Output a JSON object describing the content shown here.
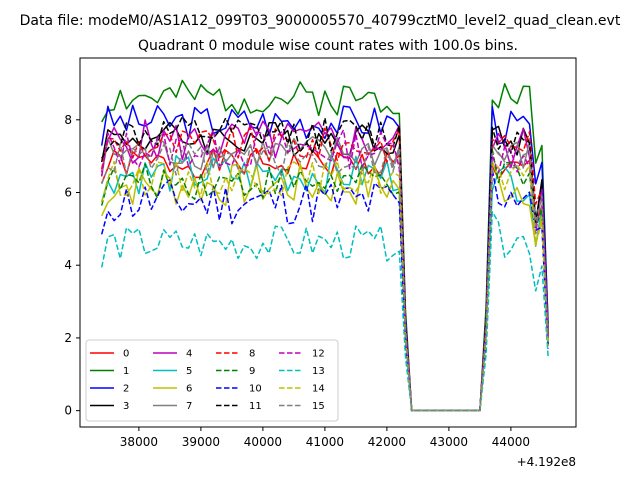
{
  "chart_data": {
    "type": "line",
    "suptitle": "Data file: modeM0/AS1A12_099T03_9000005570_40799cztM0_level2_quad_clean.evt",
    "title": "Quadrant 0 module wise count rates with 100.0s bins.",
    "xlabel": "",
    "ylabel": "",
    "x_offset_label": "+4.192e8",
    "xlim": [
      37050,
      45050
    ],
    "ylim": [
      -0.45,
      9.7
    ],
    "x_ticks": [
      38000,
      39000,
      40000,
      41000,
      42000,
      43000,
      44000
    ],
    "x_tick_labels": [
      "38000",
      "39000",
      "40000",
      "41000",
      "42000",
      "43000",
      "44000"
    ],
    "y_ticks": [
      0,
      2,
      4,
      6,
      8
    ],
    "y_tick_labels": [
      "0",
      "2",
      "4",
      "6",
      "8"
    ],
    "grid": false,
    "legend_position": "lower-left",
    "legend_columns": 4,
    "time_grid": {
      "first_block": [
        37400,
        42200
      ],
      "gap_ramp": [
        42300,
        42400
      ],
      "zero_span": [
        42400,
        43500
      ],
      "second_block": [
        43600,
        44600
      ],
      "step": 100
    },
    "series": [
      {
        "name": "0",
        "color": "#ff0000",
        "dash": "solid",
        "level": 6.8,
        "amp": 0.18,
        "seed": 1,
        "second_level": 6.6,
        "last": 1.9
      },
      {
        "name": "1",
        "color": "#008000",
        "dash": "solid",
        "level": 8.6,
        "amp": 0.22,
        "seed": 2,
        "second_level": 8.7,
        "last": 2.3
      },
      {
        "name": "2",
        "color": "#0000ff",
        "dash": "solid",
        "level": 7.95,
        "amp": 0.22,
        "seed": 3,
        "second_level": 7.8,
        "last": 2.4
      },
      {
        "name": "3",
        "color": "#000000",
        "dash": "solid",
        "level": 7.5,
        "amp": 0.22,
        "seed": 4,
        "second_level": 7.4,
        "last": 2.2
      },
      {
        "name": "4",
        "color": "#bf00bf",
        "dash": "solid",
        "level": 7.4,
        "amp": 0.28,
        "seed": 5,
        "second_level": 7.2,
        "last": 2.1
      },
      {
        "name": "5",
        "color": "#00bfbf",
        "dash": "solid",
        "level": 6.5,
        "amp": 0.25,
        "seed": 6,
        "second_level": 6.3,
        "last": 1.8
      },
      {
        "name": "6",
        "color": "#bfbf00",
        "dash": "solid",
        "level": 6.2,
        "amp": 0.28,
        "seed": 7,
        "second_level": 6.2,
        "last": 1.9
      },
      {
        "name": "7",
        "color": "#808080",
        "dash": "solid",
        "level": 7.1,
        "amp": 0.22,
        "seed": 8,
        "second_level": 7.0,
        "last": 2.0
      },
      {
        "name": "8",
        "color": "#ff0000",
        "dash": "dashed",
        "level": 7.3,
        "amp": 0.22,
        "seed": 9,
        "second_level": 7.4,
        "last": 2.1
      },
      {
        "name": "9",
        "color": "#008000",
        "dash": "dashed",
        "level": 6.3,
        "amp": 0.22,
        "seed": 10,
        "second_level": 6.4,
        "last": 1.8
      },
      {
        "name": "10",
        "color": "#0000ff",
        "dash": "dashed",
        "level": 5.75,
        "amp": 0.3,
        "seed": 11,
        "second_level": 6.0,
        "last": 1.7
      },
      {
        "name": "11",
        "color": "#000000",
        "dash": "dashed",
        "level": 7.6,
        "amp": 0.22,
        "seed": 12,
        "second_level": 7.5,
        "last": 2.1
      },
      {
        "name": "12",
        "color": "#bf00bf",
        "dash": "dashed",
        "level": 7.2,
        "amp": 0.25,
        "seed": 13,
        "second_level": 7.0,
        "last": 2.0
      },
      {
        "name": "13",
        "color": "#00bfbf",
        "dash": "dashed",
        "level": 4.6,
        "amp": 0.22,
        "seed": 14,
        "second_level": 4.7,
        "last": 1.5
      },
      {
        "name": "14",
        "color": "#bfbf00",
        "dash": "dashed",
        "level": 6.4,
        "amp": 0.22,
        "seed": 15,
        "second_level": 6.3,
        "last": 1.8
      },
      {
        "name": "15",
        "color": "#808080",
        "dash": "dashed",
        "level": 6.9,
        "amp": 0.22,
        "seed": 16,
        "second_level": 6.8,
        "last": 2.0
      }
    ]
  }
}
